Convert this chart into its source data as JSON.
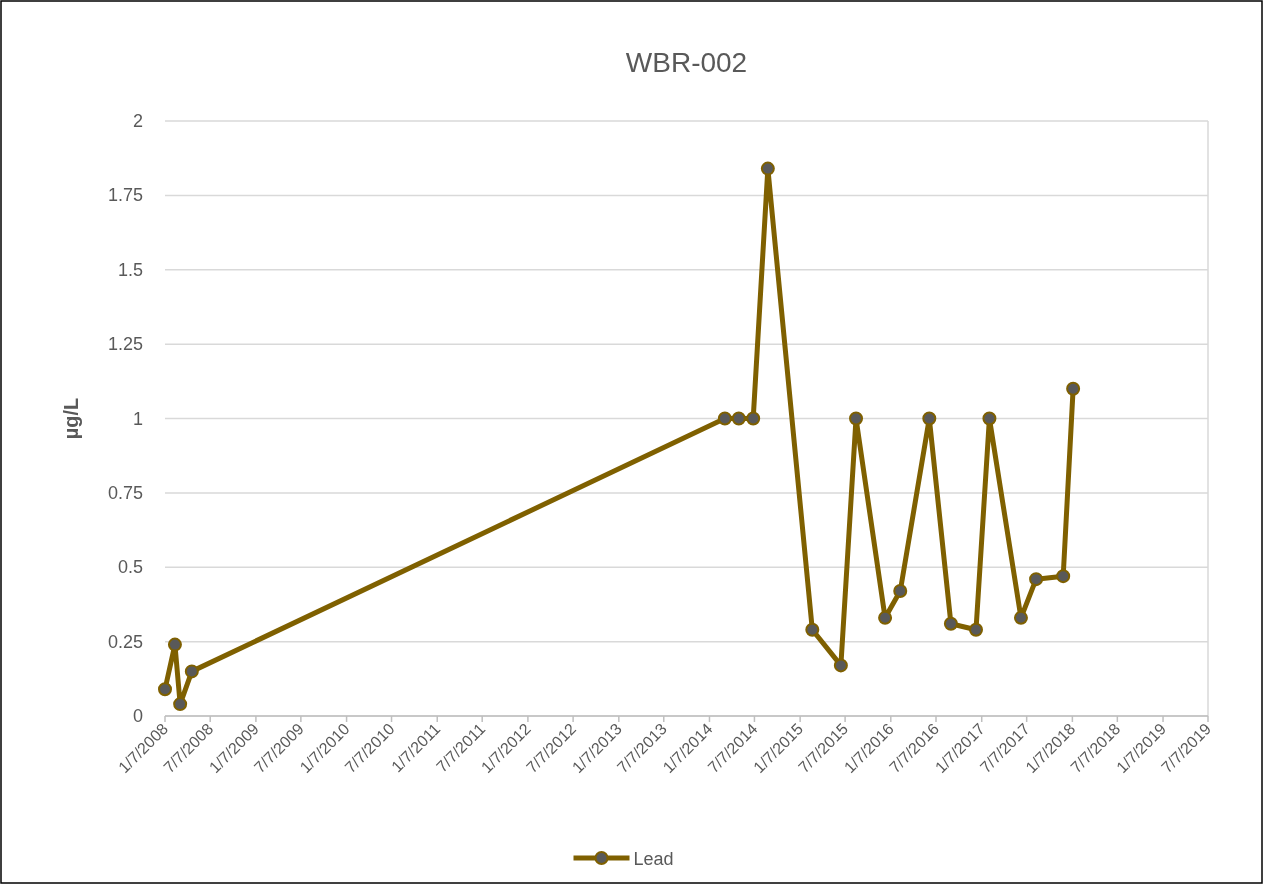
{
  "chart_data": {
    "type": "line",
    "title": "WBR-002",
    "ylabel": "µg/L",
    "x": [
      "2008-01-07",
      "2008-02-16",
      "2008-03-08",
      "2008-04-24",
      "2014-03-10",
      "2014-05-05",
      "2014-07-02",
      "2014-08-30",
      "2015-02-25",
      "2015-06-20",
      "2015-08-20",
      "2015-12-15",
      "2016-02-14",
      "2016-06-10",
      "2016-09-05",
      "2016-12-15",
      "2017-02-07",
      "2017-06-14",
      "2017-08-14",
      "2017-12-01",
      "2018-01-10"
    ],
    "series": [
      {
        "name": "Lead",
        "color": "#7f6000",
        "values": [
          0.09,
          0.24,
          0.04,
          0.15,
          1.0,
          1.0,
          1.0,
          1.84,
          0.29,
          0.17,
          1.0,
          0.33,
          0.42,
          1.0,
          0.31,
          0.29,
          1.0,
          0.33,
          0.46,
          0.47,
          1.1
        ]
      }
    ],
    "xlim": [
      "2008-01-07",
      "2019-07-07"
    ],
    "xticks": [
      {
        "value": "2008-01-07",
        "label": "1/7/2008"
      },
      {
        "value": "2008-07-07",
        "label": "7/7/2008"
      },
      {
        "value": "2009-01-07",
        "label": "1/7/2009"
      },
      {
        "value": "2009-07-07",
        "label": "7/7/2009"
      },
      {
        "value": "2010-01-07",
        "label": "1/7/2010"
      },
      {
        "value": "2010-07-07",
        "label": "7/7/2010"
      },
      {
        "value": "2011-01-07",
        "label": "1/7/2011"
      },
      {
        "value": "2011-07-07",
        "label": "7/7/2011"
      },
      {
        "value": "2012-01-07",
        "label": "1/7/2012"
      },
      {
        "value": "2012-07-07",
        "label": "7/7/2012"
      },
      {
        "value": "2013-01-07",
        "label": "1/7/2013"
      },
      {
        "value": "2013-07-07",
        "label": "7/7/2013"
      },
      {
        "value": "2014-01-07",
        "label": "1/7/2014"
      },
      {
        "value": "2014-07-07",
        "label": "7/7/2014"
      },
      {
        "value": "2015-01-07",
        "label": "1/7/2015"
      },
      {
        "value": "2015-07-07",
        "label": "7/7/2015"
      },
      {
        "value": "2016-01-07",
        "label": "1/7/2016"
      },
      {
        "value": "2016-07-07",
        "label": "7/7/2016"
      },
      {
        "value": "2017-01-07",
        "label": "1/7/2017"
      },
      {
        "value": "2017-07-07",
        "label": "7/7/2017"
      },
      {
        "value": "2018-01-07",
        "label": "1/7/2018"
      },
      {
        "value": "2018-07-07",
        "label": "7/7/2018"
      },
      {
        "value": "2019-01-07",
        "label": "1/7/2019"
      },
      {
        "value": "2019-07-07",
        "label": "7/7/2019"
      }
    ],
    "ylim": [
      0,
      2
    ],
    "yticks": [
      0,
      0.25,
      0.5,
      0.75,
      1,
      1.25,
      1.5,
      1.75,
      2
    ],
    "grid": "y",
    "legend": "bottom",
    "marker": "circle",
    "line_style": "solid"
  }
}
